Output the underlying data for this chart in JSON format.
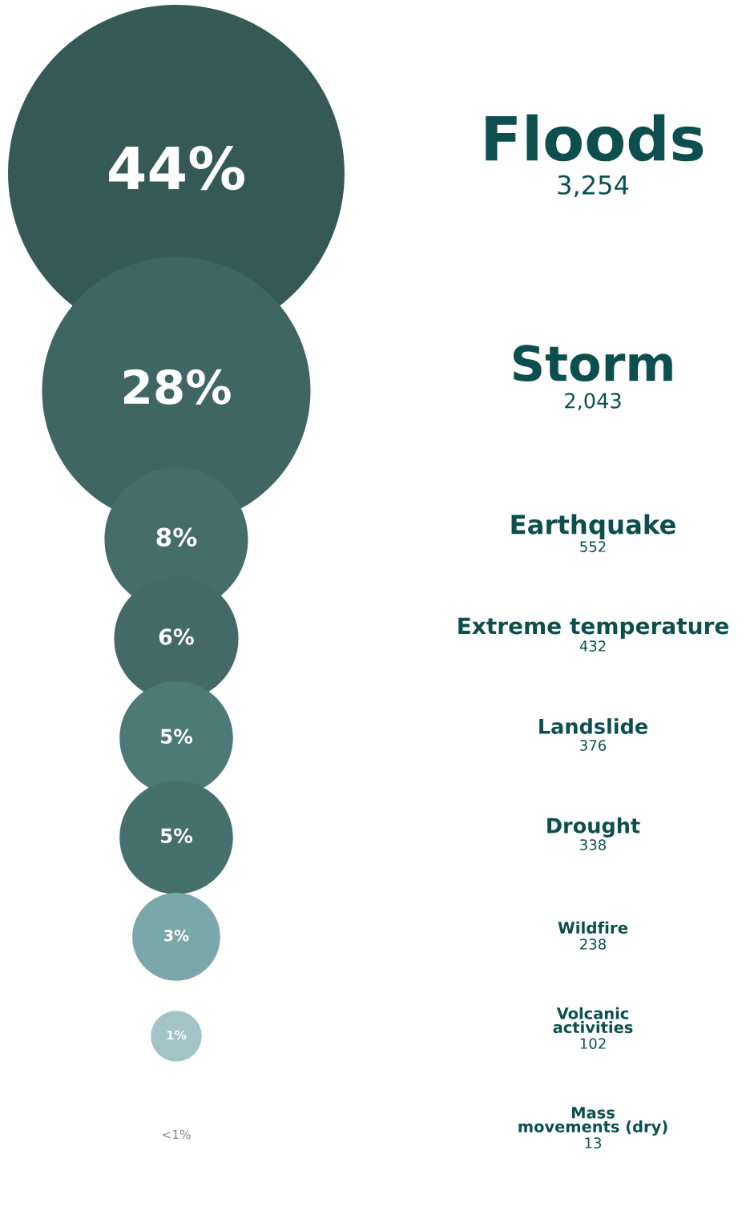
{
  "chart_data": {
    "type": "other",
    "categories": [
      "Floods",
      "Storm",
      "Earthquake",
      "Extreme temperature",
      "Landslide",
      "Drought",
      "Wildfire",
      "Volcanic activities",
      "Mass movements (dry)"
    ],
    "values": [
      44,
      28,
      8,
      6,
      5,
      5,
      3,
      1,
      null
    ],
    "value_labels": [
      "44%",
      "28%",
      "8%",
      "6%",
      "5%",
      "5%",
      "3%",
      "1%",
      "<1%"
    ],
    "annotations": [
      "3,254",
      "2,043",
      "552",
      "432",
      "376",
      "338",
      "238",
      "102",
      "13"
    ],
    "colors": [
      "#355a56",
      "#3f6663",
      "#456d6a",
      "#436a67",
      "#4d7a77",
      "#46706d",
      "#7aa8aa",
      "#a2c4c6",
      "#c9dcdd"
    ]
  }
}
